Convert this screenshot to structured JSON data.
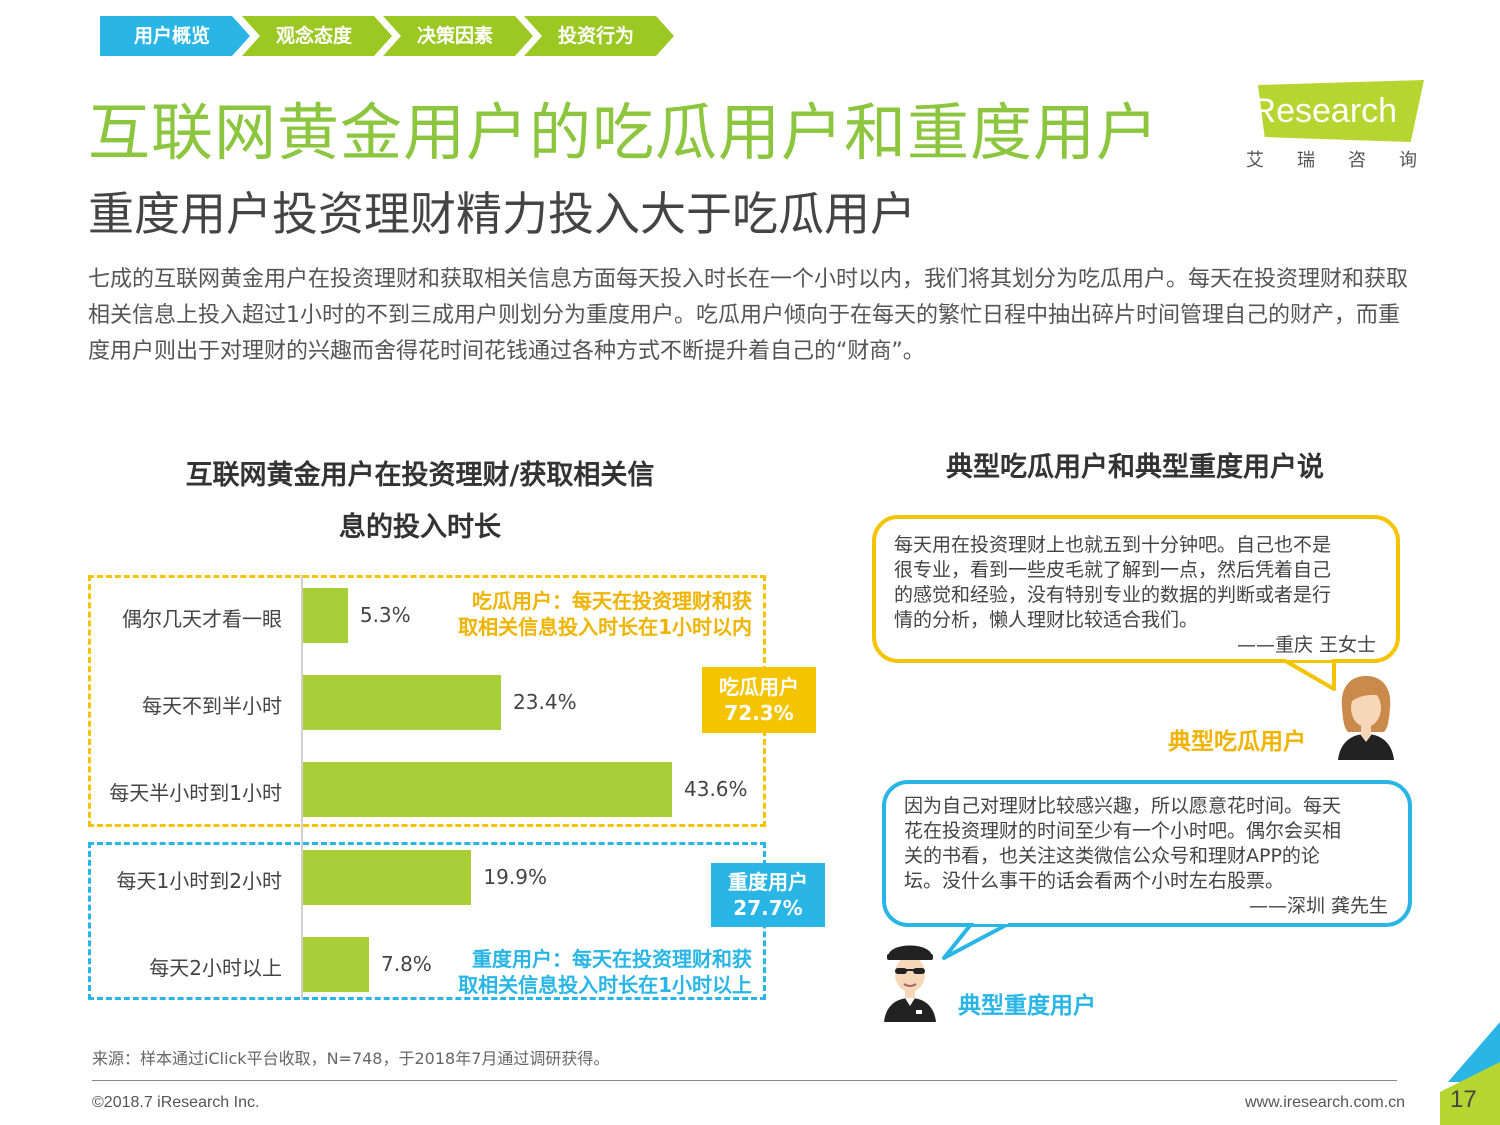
{
  "breadcrumb": [
    "用户概览",
    "观念态度",
    "决策因素",
    "投资行为"
  ],
  "logo": {
    "brand": "iResearch",
    "cn": "艾瑞咨询"
  },
  "title": "互联网黄金用户的吃瓜用户和重度用户",
  "subtitle": "重度用户投资理财精力投入大于吃瓜用户",
  "intro": "七成的互联网黄金用户在投资理财和获取相关信息方面每天投入时长在一个小时以内，我们将其划分为吃瓜用户。每天在投资理财和获取相关信息上投入超过1小时的不到三成用户则划分为重度用户。吃瓜用户倾向于在每天的繁忙日程中抽出碎片时间管理自己的财产，而重度用户则出于对理财的兴趣而舍得花时间花钱通过各种方式不断提升着自己的“财商”。",
  "chart_data": {
    "type": "bar",
    "orientation": "horizontal",
    "title": "互联网黄金用户在投资理财/获取相关信息的投入时长",
    "title_lines": [
      "互联网黄金用户在投资理财/获取相关信",
      "息的投入时长"
    ],
    "categories": [
      "偶尔几天才看一眼",
      "每天不到半小时",
      "每天半小时到1小时",
      "每天1小时到2小时",
      "每天2小时以上"
    ],
    "values": [
      5.3,
      23.4,
      43.6,
      19.9,
      7.8
    ],
    "value_labels": [
      "5.3%",
      "23.4%",
      "43.6%",
      "19.9%",
      "7.8%"
    ],
    "unit": "%",
    "xlim": [
      0,
      50
    ],
    "bar_color": "#a8cf38",
    "groups": [
      {
        "name": "吃瓜用户",
        "share": "72.3%",
        "members": [
          0,
          1,
          2
        ],
        "color": "#f5c400",
        "note": [
          "吃瓜用户：每天在投资理财和获",
          "取相关信息投入时长在1小时以内"
        ]
      },
      {
        "name": "重度用户",
        "share": "27.7%",
        "members": [
          3,
          4
        ],
        "color": "#29b6e6",
        "note": [
          "重度用户：每天在投资理财和获",
          "取相关信息投入时长在1小时以上"
        ]
      }
    ]
  },
  "quotes_title": "典型吃瓜用户和典型重度用户说",
  "quote_casual": {
    "lines": [
      "每天用在投资理财上也就五到十分钟吧。自己也不是",
      "很专业，看到一些皮毛就了解到一点，然后凭着自己",
      "的感觉和经验，没有特别专业的数据的判断或者是行",
      "情的分析，懒人理财比较适合我们。"
    ],
    "signature": "——重庆 王女士",
    "persona": "典型吃瓜用户"
  },
  "quote_heavy": {
    "lines": [
      "因为自己对理财比较感兴趣，所以愿意花时间。每天",
      "花在投资理财的时间至少有一个小时吧。偶尔会买相",
      "关的书看，也关注这类微信公众号和理财APP的论",
      "坛。没什么事干的话会看两个小时左右股票。"
    ],
    "signature": "——深圳 龚先生",
    "persona": "典型重度用户"
  },
  "source": "来源：样本通过iClick平台收取，N=748，于2018年7月通过调研获得。",
  "copyright": "©2018.7 iResearch Inc.",
  "website": "www.iresearch.com.cn",
  "page_number": "17",
  "colors": {
    "green": "#8cc63f",
    "bar": "#a8cf38",
    "yellow": "#f5c400",
    "blue": "#29b6e6"
  }
}
